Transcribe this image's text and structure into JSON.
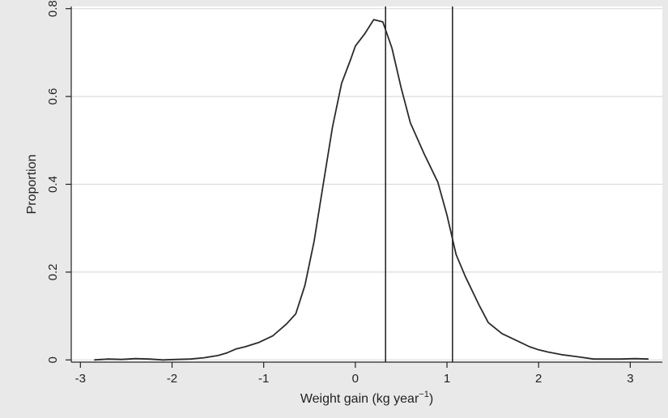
{
  "chart_data": {
    "type": "line",
    "title": "",
    "xlabel_main": "Weight gain (kg year",
    "xlabel_sup": "−1",
    "xlabel_close": ")",
    "ylabel": "Proportion",
    "xlim": [
      -3.1,
      3.35
    ],
    "ylim": [
      -0.005,
      0.805
    ],
    "x_ticks": [
      -3,
      -2,
      -1,
      0,
      1,
      2,
      3
    ],
    "y_ticks": [
      0,
      0.2,
      0.4,
      0.6,
      0.8
    ],
    "y_tick_labels": [
      "0",
      "0.2",
      "0.4",
      "0.6",
      "0.8"
    ],
    "grid": true,
    "vertical_lines": [
      0.33,
      1.06
    ],
    "colors": {
      "plot_background": "#ffffff",
      "outer_background": "#e9e9e9",
      "line": "#2b2b2b",
      "grid": "#dcdcdc"
    },
    "series": [
      {
        "x": [
          -2.85,
          -2.7,
          -2.55,
          -2.4,
          -2.25,
          -2.1,
          -1.95,
          -1.8,
          -1.65,
          -1.5,
          -1.4,
          -1.3,
          -1.2,
          -1.05,
          -0.9,
          -0.75,
          -0.65,
          -0.55,
          -0.45,
          -0.35,
          -0.25,
          -0.15,
          -0.05,
          0.0,
          0.1,
          0.2,
          0.3,
          0.4,
          0.5,
          0.6,
          0.75,
          0.9,
          1.0,
          1.1,
          1.2,
          1.35,
          1.45,
          1.6,
          1.7,
          1.8,
          1.9,
          2.0,
          2.1,
          2.25,
          2.4,
          2.6,
          2.75,
          2.9,
          3.05,
          3.2
        ],
        "y": [
          0.0,
          0.002,
          0.001,
          0.003,
          0.002,
          0.0,
          0.001,
          0.002,
          0.005,
          0.01,
          0.016,
          0.025,
          0.03,
          0.04,
          0.055,
          0.082,
          0.105,
          0.17,
          0.27,
          0.4,
          0.53,
          0.63,
          0.685,
          0.715,
          0.742,
          0.775,
          0.77,
          0.71,
          0.62,
          0.54,
          0.47,
          0.405,
          0.33,
          0.24,
          0.19,
          0.125,
          0.085,
          0.06,
          0.05,
          0.04,
          0.03,
          0.023,
          0.018,
          0.012,
          0.008,
          0.002,
          0.002,
          0.002,
          0.003,
          0.002
        ]
      }
    ]
  }
}
